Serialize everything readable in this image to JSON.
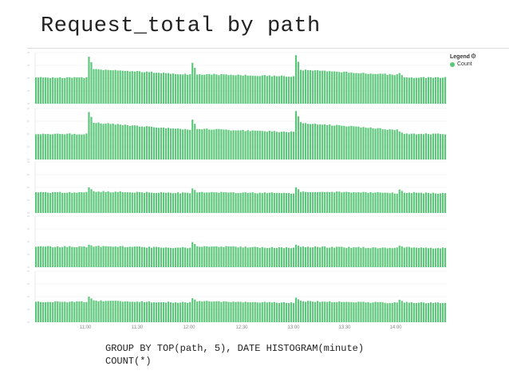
{
  "title": "Request_total by path",
  "caption": {
    "line1": "GROUP BY TOP(path, 5), DATE HISTOGRAM(minute)",
    "line2": "COUNT(*)"
  },
  "legend": {
    "title": "Legend",
    "items": [
      {
        "label": "Count",
        "color": "#5cc67a"
      }
    ]
  },
  "colors": {
    "bar": "#5cc67a",
    "bar_edge": "#3fae60",
    "grid": "#ececec",
    "axis_text": "#888888"
  },
  "chart_data": [
    {
      "type": "bar",
      "panel": 1,
      "x_ticks": [
        "11:00",
        "11:30",
        "12:00",
        "12:30",
        "13:00",
        "13:30",
        "14:00"
      ],
      "ylim": [
        0,
        1
      ],
      "minutes": 171,
      "baseline": 0.51,
      "spikes": [
        {
          "minute": 22,
          "peak": 0.92,
          "level": 0.68
        },
        {
          "minute": 65,
          "peak": 0.8,
          "level": 0.58
        },
        {
          "minute": 108,
          "peak": 0.95,
          "level": 0.66
        },
        {
          "minute": 151,
          "peak": 0.6,
          "level": 0.51
        }
      ],
      "decay_to": 0.51
    },
    {
      "type": "bar",
      "panel": 2,
      "x_ticks": [
        "11:00",
        "11:30",
        "12:00",
        "12:30",
        "13:00",
        "13:30",
        "14:00"
      ],
      "ylim": [
        0,
        1
      ],
      "minutes": 171,
      "baseline": 0.5,
      "spikes": [
        {
          "minute": 22,
          "peak": 0.93,
          "level": 0.72
        },
        {
          "minute": 65,
          "peak": 0.78,
          "level": 0.6
        },
        {
          "minute": 108,
          "peak": 0.95,
          "level": 0.72
        },
        {
          "minute": 151,
          "peak": 0.55,
          "level": 0.5
        }
      ],
      "decay_to": 0.5
    },
    {
      "type": "bar",
      "panel": 3,
      "x_ticks": [
        "11:00",
        "11:30",
        "12:00",
        "12:30",
        "13:00",
        "13:30",
        "14:00"
      ],
      "ylim": [
        0,
        1
      ],
      "minutes": 171,
      "baseline": 0.4,
      "spikes": [
        {
          "minute": 22,
          "peak": 0.5,
          "level": 0.42
        },
        {
          "minute": 65,
          "peak": 0.48,
          "level": 0.41
        },
        {
          "minute": 108,
          "peak": 0.5,
          "level": 0.42
        },
        {
          "minute": 151,
          "peak": 0.46,
          "level": 0.4
        }
      ],
      "decay_to": 0.37
    },
    {
      "type": "bar",
      "panel": 4,
      "x_ticks": [
        "11:00",
        "11:30",
        "12:00",
        "12:30",
        "13:00",
        "13:30",
        "14:00"
      ],
      "ylim": [
        0,
        1
      ],
      "minutes": 171,
      "baseline": 0.4,
      "spikes": [
        {
          "minute": 22,
          "peak": 0.44,
          "level": 0.41
        },
        {
          "minute": 65,
          "peak": 0.49,
          "level": 0.41
        },
        {
          "minute": 108,
          "peak": 0.44,
          "level": 0.4
        },
        {
          "minute": 151,
          "peak": 0.42,
          "level": 0.39
        }
      ],
      "decay_to": 0.36
    },
    {
      "type": "bar",
      "panel": 5,
      "x_ticks": [
        "11:00",
        "11:30",
        "12:00",
        "12:30",
        "13:00",
        "13:30",
        "14:00"
      ],
      "ylim": [
        0,
        1
      ],
      "minutes": 171,
      "baseline": 0.4,
      "spikes": [
        {
          "minute": 22,
          "peak": 0.5,
          "level": 0.42
        },
        {
          "minute": 65,
          "peak": 0.47,
          "level": 0.41
        },
        {
          "minute": 108,
          "peak": 0.48,
          "level": 0.41
        },
        {
          "minute": 151,
          "peak": 0.44,
          "level": 0.39
        }
      ],
      "decay_to": 0.36
    }
  ]
}
